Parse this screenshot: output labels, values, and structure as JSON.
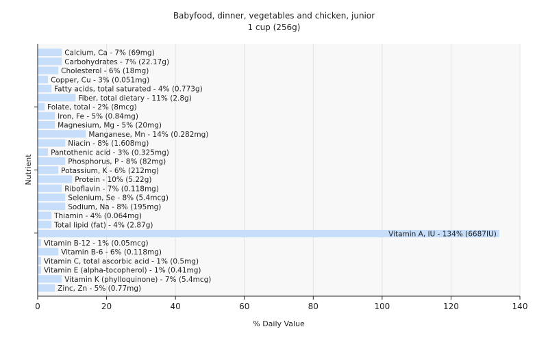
{
  "chart_data": {
    "type": "bar",
    "orientation": "horizontal",
    "title": "Babyfood, dinner, vegetables and chicken, junior",
    "subtitle": "1 cup (256g)",
    "xlabel": "% Daily Value",
    "ylabel": "Nutrient",
    "xlim": [
      0,
      140
    ],
    "xticks": [
      0,
      20,
      40,
      60,
      80,
      100,
      120,
      140
    ],
    "grid": true,
    "bar_color": "#c6defa",
    "plot_background": "#f8f8f8",
    "categories": [
      "Calcium, Ca",
      "Carbohydrates",
      "Cholesterol",
      "Copper, Cu",
      "Fatty acids, total saturated",
      "Fiber, total dietary",
      "Folate, total",
      "Iron, Fe",
      "Magnesium, Mg",
      "Manganese, Mn",
      "Niacin",
      "Pantothenic acid",
      "Phosphorus, P",
      "Potassium, K",
      "Protein",
      "Riboflavin",
      "Selenium, Se",
      "Sodium, Na",
      "Thiamin",
      "Total lipid (fat)",
      "Vitamin A, IU",
      "Vitamin B-12",
      "Vitamin B-6",
      "Vitamin C, total ascorbic acid",
      "Vitamin E (alpha-tocopherol)",
      "Vitamin K (phylloquinone)",
      "Zinc, Zn"
    ],
    "values": [
      7,
      7,
      6,
      3,
      4,
      11,
      2,
      5,
      5,
      14,
      8,
      3,
      8,
      6,
      10,
      7,
      8,
      8,
      4,
      4,
      134,
      1,
      6,
      1,
      1,
      7,
      5
    ],
    "labels": [
      "Calcium, Ca - 7% (69mg)",
      "Carbohydrates - 7% (22.17g)",
      "Cholesterol - 6% (18mg)",
      "Copper, Cu - 3% (0.051mg)",
      "Fatty acids, total saturated - 4% (0.773g)",
      "Fiber, total dietary - 11% (2.8g)",
      "Folate, total - 2% (8mcg)",
      "Iron, Fe - 5% (0.84mg)",
      "Magnesium, Mg - 5% (20mg)",
      "Manganese, Mn - 14% (0.282mg)",
      "Niacin - 8% (1.608mg)",
      "Pantothenic acid - 3% (0.325mg)",
      "Phosphorus, P - 8% (82mg)",
      "Potassium, K - 6% (212mg)",
      "Protein - 10% (5.22g)",
      "Riboflavin - 7% (0.118mg)",
      "Selenium, Se - 8% (5.4mcg)",
      "Sodium, Na - 8% (195mg)",
      "Thiamin - 4% (0.064mg)",
      "Total lipid (fat) - 4% (2.87g)",
      "Vitamin A, IU - 134% (6687IU)",
      "Vitamin B-12 - 1% (0.05mcg)",
      "Vitamin B-6 - 6% (0.118mg)",
      "Vitamin C, total ascorbic acid - 1% (0.5mg)",
      "Vitamin E (alpha-tocopherol) - 1% (0.41mg)",
      "Vitamin K (phylloquinone) - 7% (5.4mcg)",
      "Zinc, Zn - 5% (0.77mg)"
    ]
  }
}
